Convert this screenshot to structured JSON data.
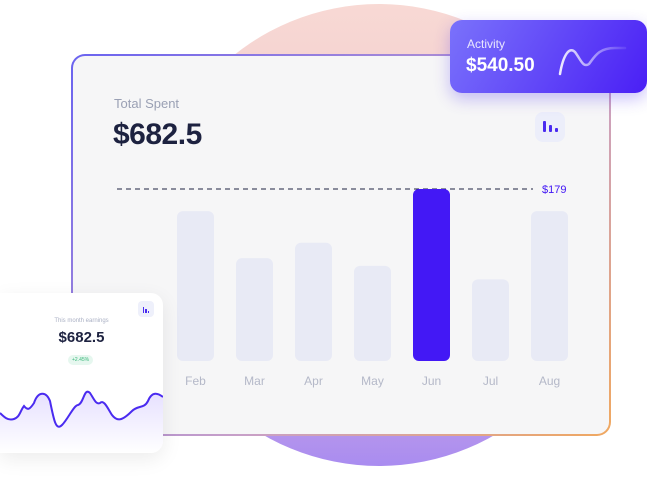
{
  "main_card": {
    "label": "Total Spent",
    "value": "$682.5",
    "icon": "bar-chart-icon"
  },
  "chart_data": {
    "type": "bar",
    "categories": [
      "Feb",
      "Mar",
      "Apr",
      "May",
      "Jun",
      "Jul",
      "Aug"
    ],
    "values": [
      156,
      107,
      123,
      99,
      179,
      85,
      156
    ],
    "highlighted": "Jun",
    "reference_line": {
      "value": 179,
      "label": "$179"
    },
    "colors": {
      "bar": "#e8eaf5",
      "highlight": "#4318f5",
      "line": "#1d2240"
    }
  },
  "activity_card": {
    "label": "Activity",
    "value": "$540.50",
    "icon": "sparkline-icon"
  },
  "earnings_card": {
    "label": "This month earnings",
    "value": "$682.5",
    "badge": "+2.45%",
    "icon": "bar-chart-icon"
  }
}
